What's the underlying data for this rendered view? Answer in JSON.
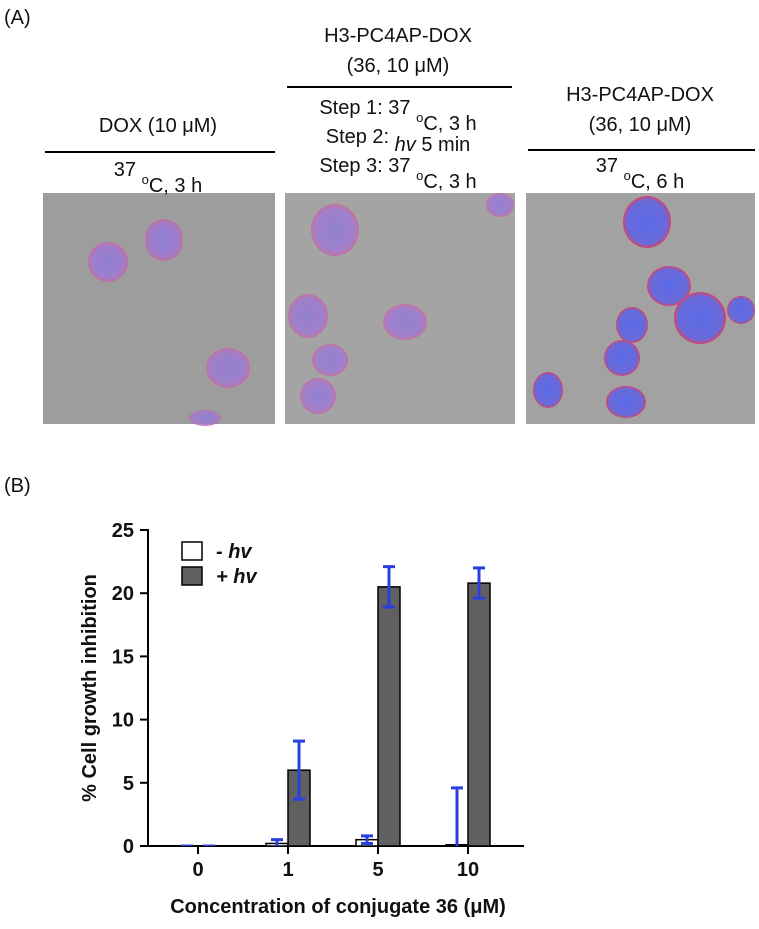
{
  "panel_a": {
    "label": "(A)",
    "panels": [
      {
        "title": [
          [
            "DOX (10 μM)"
          ]
        ],
        "condition": [
          [
            "37 ",
            {
              "sup": "o"
            },
            "C, 3 h"
          ]
        ]
      },
      {
        "title": [
          [
            "H3-PC4AP-DOX"
          ],
          [
            "(36, 10 μM)"
          ]
        ],
        "condition": [
          [
            "Step 1: 37 ",
            {
              "sup": "o"
            },
            "C, 3 h"
          ],
          [
            "Step 2: ",
            {
              "italic": "hv"
            },
            "  5 min"
          ],
          [
            "Step 3: 37 ",
            {
              "sup": "o"
            },
            "C, 3 h"
          ]
        ]
      },
      {
        "title": [
          [
            "H3-PC4AP-DOX"
          ],
          [
            "(36, 10 μM)"
          ]
        ],
        "condition": [
          [
            "37 ",
            {
              "sup": "o"
            },
            "C, 6 h"
          ]
        ]
      }
    ]
  },
  "panel_b_label": "(B)",
  "chart_data": {
    "type": "bar",
    "y_label": "% Cell growth inhibition",
    "x_label": "Concentration of conjugate 36 (μM)",
    "categories": [
      "0",
      "1",
      "5",
      "10"
    ],
    "series": [
      {
        "name": "- hv",
        "color": "#ffffff",
        "values": [
          0,
          0.2,
          0.5,
          0.1
        ],
        "errors": [
          0,
          0.3,
          0.3,
          4.5
        ],
        "error_color": "#2b3fe0"
      },
      {
        "name": "+ hv",
        "color": "#606060",
        "values": [
          0,
          6.0,
          20.5,
          20.8
        ],
        "errors": [
          0,
          2.3,
          1.6,
          1.2
        ],
        "error_color": "#2b3fe0"
      }
    ],
    "ylim": [
      0,
      25
    ],
    "yticks": [
      0,
      5,
      10,
      15,
      20,
      25
    ],
    "legend": "upper-left"
  }
}
